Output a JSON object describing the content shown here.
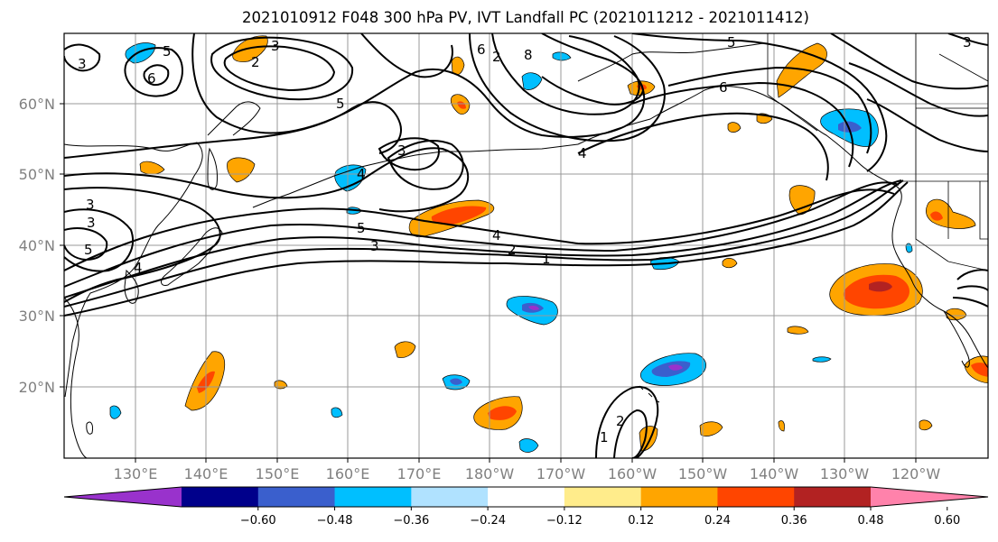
{
  "title": "2021010912 F048 300 hPa PV, IVT Landfall PC (2021011212 - 2021011412)",
  "lat_labels": [
    "60°N",
    "50°N",
    "40°N",
    "30°N",
    "20°N"
  ],
  "lon_labels": [
    "130°E",
    "140°E",
    "150°E",
    "160°E",
    "170°E",
    "180°W",
    "170°W",
    "160°W",
    "150°W",
    "140°W",
    "130°W",
    "120°W"
  ],
  "colorbar": {
    "colors": [
      "#9932CC",
      "#00008B",
      "#3A5FCD",
      "#00BFFF",
      "#B0E2FF",
      "#FFFFFF",
      "#FFEC8B",
      "#FFA500",
      "#FF4500",
      "#B22222",
      "#FF82AB"
    ],
    "ticks": [
      "−0.60",
      "−0.48",
      "−0.36",
      "−0.24",
      "−0.12",
      "0.12",
      "0.24",
      "0.36",
      "0.48",
      "0.60"
    ]
  },
  "contour_labels": [
    "3",
    "5",
    "6",
    "3",
    "2",
    "5",
    "3",
    "4",
    "6",
    "2",
    "8",
    "5",
    "6",
    "4",
    "3",
    "3",
    "5",
    "3",
    "4",
    "5",
    "3",
    "4",
    "2",
    "1",
    "1",
    "2"
  ]
}
